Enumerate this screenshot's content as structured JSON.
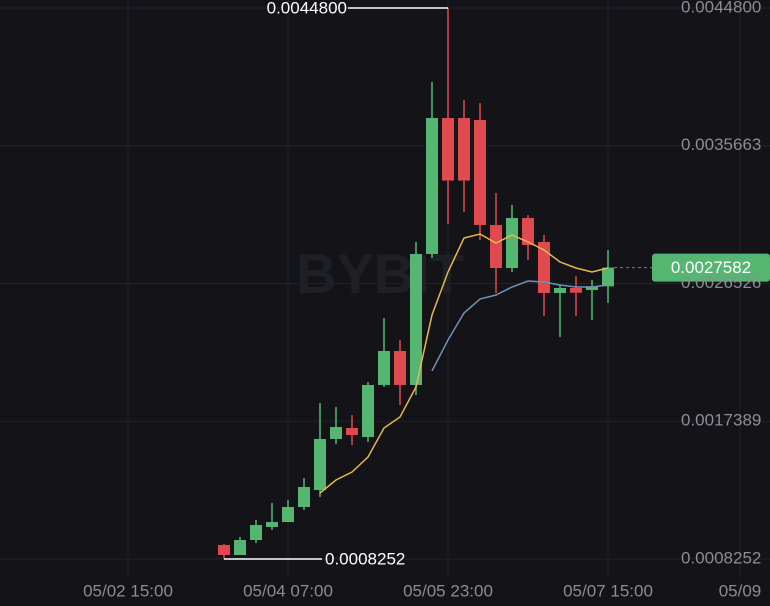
{
  "chart_data": {
    "type": "candlestick",
    "watermark": "BYBIT",
    "x": [
      "05/03 15:00",
      "05/03 19:00",
      "05/03 23:00",
      "05/04 03:00",
      "05/04 07:00",
      "05/04 11:00",
      "05/04 15:00",
      "05/04 19:00",
      "05/04 23:00",
      "05/05 03:00",
      "05/05 07:00",
      "05/05 11:00",
      "05/05 15:00",
      "05/05 19:00",
      "05/05 23:00",
      "05/06 03:00",
      "05/06 07:00",
      "05/06 11:00",
      "05/06 15:00",
      "05/06 19:00",
      "05/06 23:00",
      "05/07 03:00",
      "05/07 07:00",
      "05/07 11:00",
      "05/07 15:00"
    ],
    "open": [
      0.0009181,
      0.0008517,
      0.0009512,
      0.0010375,
      0.0010706,
      0.0011701,
      0.0012829,
      0.0016213,
      0.0016942,
      0.0016345,
      0.0019795,
      0.0022049,
      0.0019795,
      0.0028483,
      0.0037504,
      0.0037504,
      0.0037371,
      0.0030406,
      0.0027554,
      0.0030871,
      0.0029279,
      0.0025896,
      0.0026228,
      0.0026095,
      0.002634
    ],
    "high": [
      0.000925,
      0.0009711,
      0.0010839,
      0.0011967,
      0.0012166,
      0.0013625,
      0.0018601,
      0.0018335,
      0.0017805,
      0.0019994,
      0.0024238,
      0.0022778,
      0.0029279,
      0.0039892,
      0.00448,
      0.0038698,
      0.0038499,
      0.0032529,
      0.0031733,
      0.003107,
      0.0029743,
      0.0026427,
      0.002701,
      0.0026758,
      0.0028748
    ],
    "low": [
      0.0008252,
      0.0008517,
      0.0009313,
      0.0010176,
      0.0010706,
      0.0011502,
      0.0012365,
      0.0015881,
      0.0015815,
      0.0016014,
      0.0019662,
      0.0018468,
      0.0019131,
      0.0028217,
      0.0030473,
      0.0031269,
      0.0029411,
      0.0025896,
      0.0027289,
      0.0028085,
      0.002437,
      0.0022977,
      0.002437,
      0.0024105,
      0.0025233
    ],
    "close": [
      0.0008517,
      0.0009512,
      0.0010507,
      0.0010706,
      0.0011701,
      0.0013028,
      0.0016213,
      0.0017009,
      0.0016478,
      0.0019795,
      0.0022049,
      0.0019795,
      0.0028483,
      0.0037504,
      0.0033357,
      0.0033357,
      0.0030406,
      0.0027554,
      0.0030871,
      0.002908,
      0.0025896,
      0.0026228,
      0.0025917,
      0.002634,
      0.0027582
    ],
    "up_color": "#55b672",
    "down_color": "#e0494e",
    "series": [
      {
        "color": "#e8b64c",
        "values": [
          null,
          null,
          null,
          null,
          null,
          null,
          0.001263,
          0.0013492,
          0.0014023,
          0.0015018,
          0.0016941,
          0.0017671,
          0.0019662,
          0.0024436,
          0.0027289,
          0.0029544,
          0.0029809,
          0.0029212,
          0.0029743,
          0.0029281,
          0.0028748,
          0.0027952,
          0.0027554,
          0.0027289,
          0.0027554
        ]
      },
      {
        "color": "#6f93b8",
        "values": [
          null,
          null,
          null,
          null,
          null,
          null,
          null,
          null,
          null,
          null,
          null,
          null,
          null,
          0.0020726,
          0.0022778,
          0.0024569,
          0.0025498,
          0.0025763,
          0.0026294,
          0.0026692,
          0.0026626,
          0.0026427,
          0.0026294,
          0.0026294,
          0.0026427
        ]
      }
    ],
    "high_label": "0.0044800",
    "low_label": "0.0008252",
    "last_price_label": "0.0027582",
    "ylim": [
      0.0006992,
      0.0045331
    ],
    "yticks": [
      {
        "value": 0.0008252,
        "label": "0.0008252"
      },
      {
        "value": 0.0017389,
        "label": "0.0017389"
      },
      {
        "value": 0.0026526,
        "label": "0.0026526"
      },
      {
        "value": 0.0035663,
        "label": "0.0035663"
      },
      {
        "value": 0.00448,
        "label": "0.0044800"
      }
    ],
    "xticks": [
      "05/02 15:00",
      "05/04 07:00",
      "05/05 23:00",
      "05/07 15:00",
      "05/09"
    ],
    "grid": true
  }
}
